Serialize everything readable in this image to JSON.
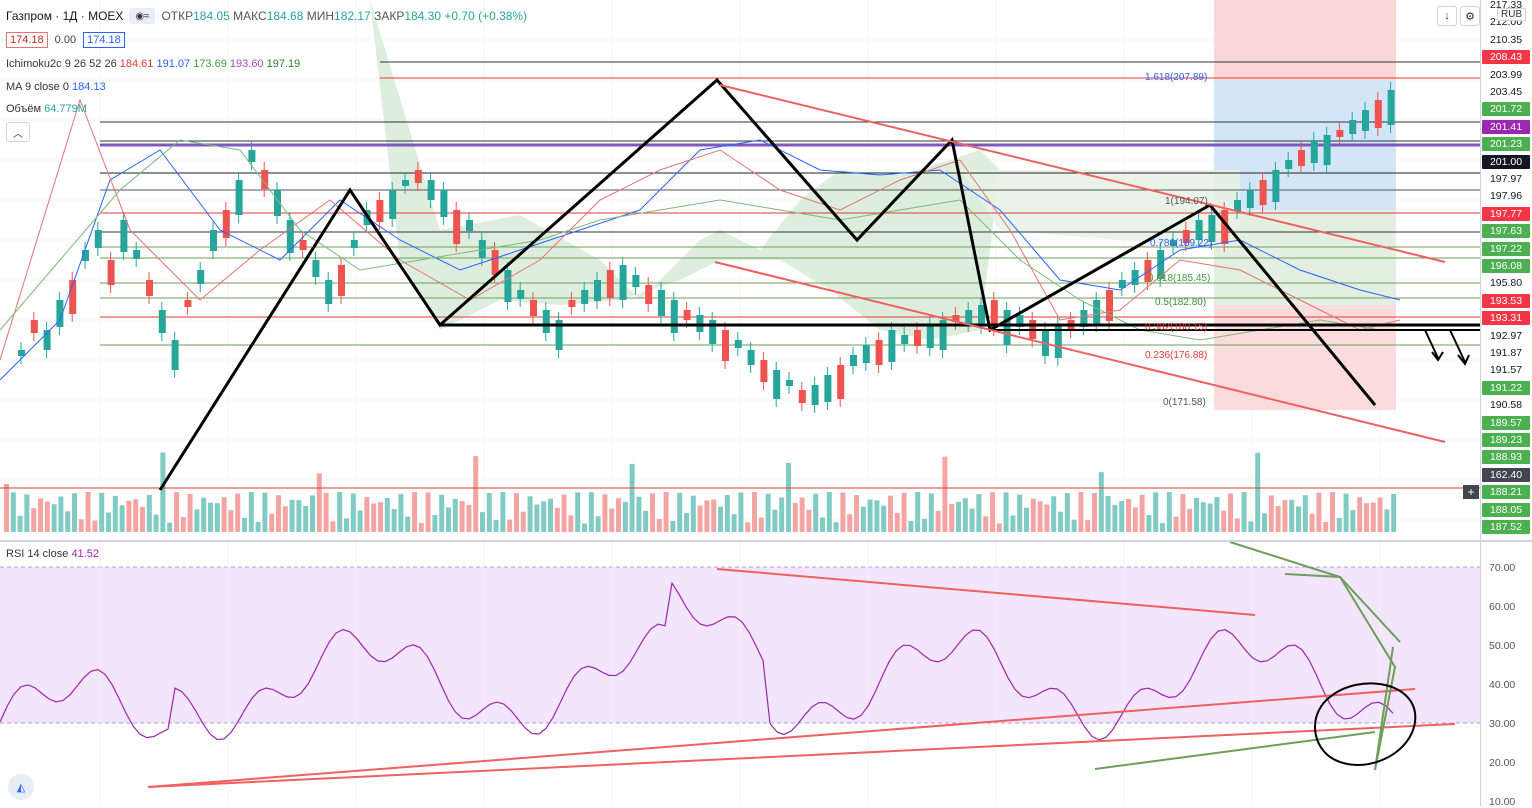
{
  "header": {
    "symbol": "Газпром · 1Д · MOEX",
    "open_label": "ОТКР",
    "open": "184.05",
    "high_label": "МАКС",
    "high": "184.68",
    "low_label": "МИН",
    "low": "182.17",
    "close_label": "ЗАКР",
    "close": "184.30",
    "change": "+0.70 (+0.38%)",
    "sell_price": "174.18",
    "spread": "0.00",
    "buy_price": "174.18"
  },
  "indicators": {
    "ichimoku": {
      "label": "Ichimoku2c 9 26 52 26",
      "v1": "184.61",
      "v2": "191.07",
      "v3": "173.69",
      "v4": "193.60",
      "v5": "197.19"
    },
    "ma": {
      "label": "MA 9 close 0",
      "value": "184.13"
    },
    "volume": {
      "label": "Объём",
      "value": "64.779M"
    }
  },
  "fib_labels": [
    "1.618(207.89)",
    "1(194.07)",
    "0.786(189.22)",
    "0.618(185.45)",
    "0.5(182.80)",
    "0.382(180.15)",
    "0.236(176.88)",
    "0(171.58)"
  ],
  "toolbar": {
    "currency": "RUB",
    "scroll_icon": "↓",
    "settings_icon": "⚙"
  },
  "price_scale": [
    {
      "t": "217.33",
      "style": "plain"
    },
    {
      "t": "212.00",
      "style": "plain"
    },
    {
      "t": "210.35",
      "style": "plain"
    },
    {
      "t": "208.43",
      "style": "red"
    },
    {
      "t": "203.99",
      "style": "plain"
    },
    {
      "t": "203.45",
      "style": "plain"
    },
    {
      "t": "201.72",
      "style": "green"
    },
    {
      "t": "201.41",
      "style": "purple"
    },
    {
      "t": "201.23",
      "style": "green"
    },
    {
      "t": "201.00",
      "style": "black"
    },
    {
      "t": "197.97",
      "style": "plain"
    },
    {
      "t": "197.96",
      "style": "plain"
    },
    {
      "t": "197.77",
      "style": "red"
    },
    {
      "t": "197.63",
      "style": "green"
    },
    {
      "t": "197.22",
      "style": "green"
    },
    {
      "t": "196.08",
      "style": "green"
    },
    {
      "t": "195.80",
      "style": "plain"
    },
    {
      "t": "193.53",
      "style": "red"
    },
    {
      "t": "193.31",
      "style": "red"
    },
    {
      "t": "192.97",
      "style": "plain"
    },
    {
      "t": "191.87",
      "style": "plain"
    },
    {
      "t": "191.57",
      "style": "plain"
    },
    {
      "t": "191.22",
      "style": "green"
    },
    {
      "t": "190.58",
      "style": "plain"
    },
    {
      "t": "189.57",
      "style": "green"
    },
    {
      "t": "189.23",
      "style": "green"
    },
    {
      "t": "188.93",
      "style": "green"
    },
    {
      "t": "162.40",
      "style": "dark"
    },
    {
      "t": "188.21",
      "style": "green"
    },
    {
      "t": "188.05",
      "style": "green"
    },
    {
      "t": "187.52",
      "style": "green"
    }
  ],
  "rsi": {
    "label": "RSI 14 close",
    "value": "41.52",
    "scale": [
      "70.00",
      "60.00",
      "50.00",
      "40.00",
      "30.00",
      "20.00",
      "10.00"
    ]
  },
  "colors": {
    "up": "#26a69a",
    "down": "#ef5350",
    "up_vol": "#80cbc4",
    "down_vol": "#f5a4a4",
    "rsi_line": "#9c27b0",
    "rsi_band": "#f3e5fc",
    "cloud": "#e0f0e0",
    "trend_red": "#f06060",
    "trend_green": "#6f9d5a",
    "blue": "#2962ff",
    "purple": "#9c27b0"
  }
}
